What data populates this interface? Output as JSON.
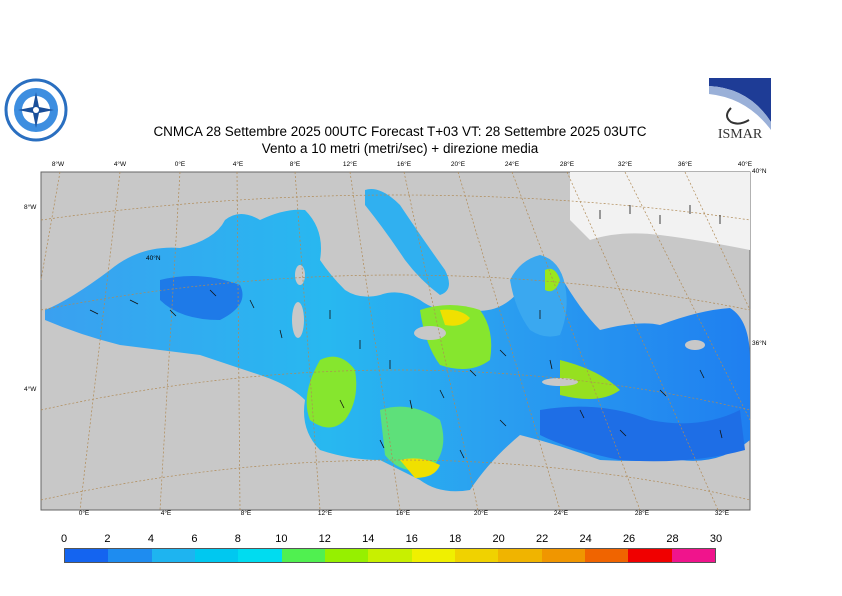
{
  "header": {
    "title_line1": "CNMCA 28 Settembre 2025 00UTC Forecast T+03 VT: 28 Settembre 2025 03UTC",
    "title_line2": "Vento a 10 metri (metri/sec) + direzione media"
  },
  "logos": {
    "left": "cnmca-compass-logo",
    "right_text": "ISMAR"
  },
  "map": {
    "lon_top": [
      "8°W",
      "4°W",
      "0°E",
      "4°E",
      "8°E",
      "12°E",
      "16°E",
      "20°E",
      "24°E",
      "28°E",
      "32°E",
      "36°E",
      "40°E"
    ],
    "lon_bottom": [
      "0°E",
      "4°E",
      "8°E",
      "12°E",
      "16°E",
      "20°E",
      "24°E",
      "28°E",
      "32°E"
    ],
    "lat_left": [
      "8°W",
      "40°N",
      "4°W"
    ],
    "lat_right": [
      "40°N",
      "36°N"
    ],
    "colors": {
      "land": "#c8c8c8",
      "sea_low": "#1f7ff0",
      "sea_mid": "#1fc8ff",
      "sea_high": "#7fe61f",
      "yellow": "#f0f000",
      "grid": "#b08a55"
    }
  },
  "colorbar": {
    "labels": [
      "0",
      "2",
      "4",
      "6",
      "8",
      "10",
      "12",
      "14",
      "16",
      "18",
      "20",
      "22",
      "24",
      "26",
      "28",
      "30"
    ],
    "colors": [
      "#1464f0",
      "#1e8cf0",
      "#1eb4f0",
      "#00c8f0",
      "#00dcf0",
      "#50f050",
      "#96f000",
      "#c8f000",
      "#f0f000",
      "#f0d200",
      "#f0b400",
      "#f09600",
      "#f06400",
      "#f00000",
      "#f0148c"
    ]
  }
}
